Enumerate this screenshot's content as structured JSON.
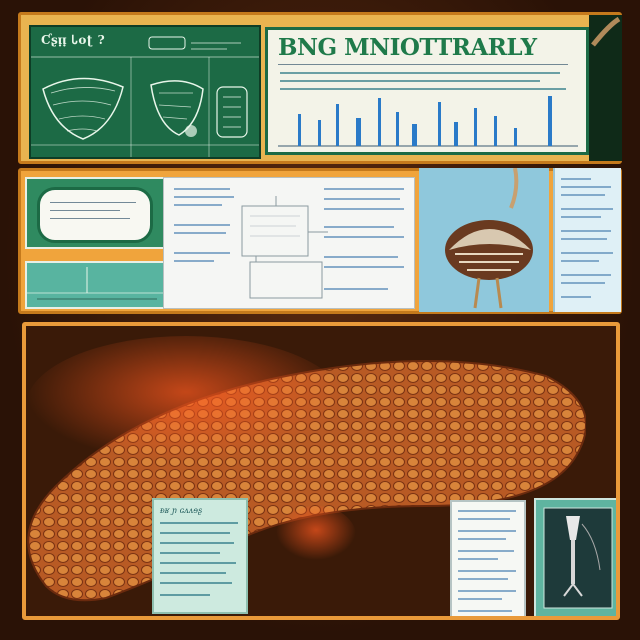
{
  "top": {
    "chalk_title": "Ƈʂᴉᴉ Ꮣoʈ ?",
    "poster_title": "BNG MNIOTTRARLY"
  },
  "bottom": {
    "caption_title": "ᴆʁ ɲ ɢᴧᴧɘʂ"
  },
  "colors": {
    "chalkboard": "#1c6a45",
    "panel_orange": "#f0a43c",
    "frame": "#e99a3a",
    "lung": "#c86a2c",
    "sky": "#8fc8dc",
    "chart_bars": "#2a7ac8"
  },
  "icons": [
    "bird-illustration-icon",
    "organ-illustration-icon",
    "leaf-diagram-icon"
  ]
}
